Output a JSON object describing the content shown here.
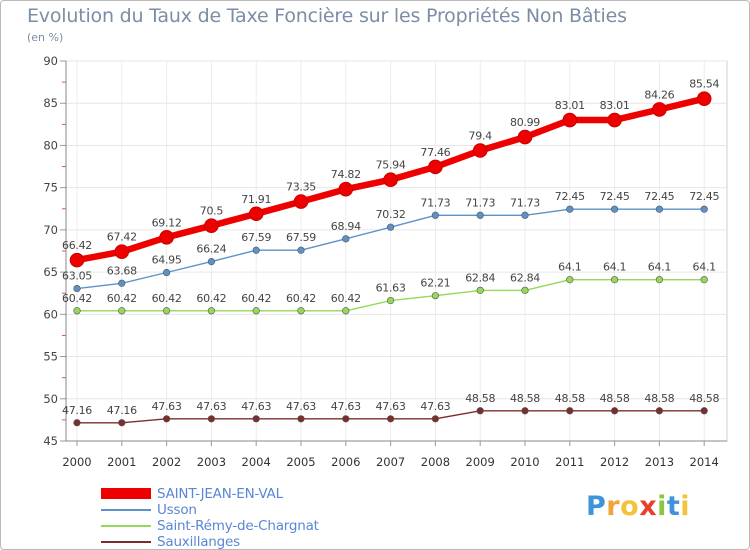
{
  "title": "Evolution du Taux de Taxe Foncière sur les Propriétés Non Bâties",
  "subtitle": "(en %)",
  "logo": {
    "text": "Proxiti",
    "letter_colors": [
      "#3f93d9",
      "#f2a33a",
      "#f5c23b",
      "#e8402e",
      "#8cc641",
      "#3f93d9",
      "#f5c23b"
    ]
  },
  "chart_data": {
    "type": "line",
    "title": "Evolution du Taux de Taxe Foncière sur les Propriétés Non Bâties",
    "ylabel": "(en %)",
    "xlabel": "",
    "x": [
      "2000",
      "2001",
      "2002",
      "2003",
      "2004",
      "2005",
      "2006",
      "2007",
      "2008",
      "2009",
      "2010",
      "2011",
      "2012",
      "2013",
      "2014"
    ],
    "ylim": [
      45,
      90
    ],
    "yticks": [
      "45",
      "50",
      "55",
      "60",
      "65",
      "70",
      "75",
      "80",
      "85",
      "90"
    ],
    "grid": true,
    "legend_position": "bottom-left",
    "series": [
      {
        "name": "SAINT-JEAN-EN-VAL",
        "color": "#ee0000",
        "values": [
          66.42,
          67.42,
          69.12,
          70.5,
          71.91,
          73.35,
          74.82,
          75.94,
          77.46,
          79.4,
          80.99,
          83.01,
          83.01,
          84.26,
          85.54
        ],
        "labels": [
          "66.42",
          "67.42",
          "69.12",
          "70.5",
          "71.91",
          "73.35",
          "74.82",
          "75.94",
          "77.46",
          "79.4",
          "80.99",
          "83.01",
          "83.01",
          "84.26",
          "85.54"
        ]
      },
      {
        "name": "Usson",
        "color": "#5b93c8",
        "values": [
          63.05,
          63.68,
          64.95,
          66.24,
          67.59,
          67.59,
          68.94,
          70.32,
          71.73,
          71.73,
          71.73,
          72.45,
          72.45,
          72.45,
          72.45
        ],
        "labels": [
          "63.05",
          "63.68",
          "64.95",
          "66.24",
          "67.59",
          "67.59",
          "68.94",
          "70.32",
          "71.73",
          "71.73",
          "71.73",
          "72.45",
          "72.45",
          "72.45",
          "72.45"
        ]
      },
      {
        "name": "Saint-Rémy-de-Chargnat",
        "color": "#96d85a",
        "values": [
          60.42,
          60.42,
          60.42,
          60.42,
          60.42,
          60.42,
          60.42,
          61.63,
          62.21,
          62.84,
          62.84,
          64.1,
          64.1,
          64.1,
          64.1
        ],
        "labels": [
          "60.42",
          "60.42",
          "60.42",
          "60.42",
          "60.42",
          "60.42",
          "60.42",
          "61.63",
          "62.21",
          "62.84",
          "62.84",
          "64.1",
          "64.1",
          "64.1",
          "64.1"
        ]
      },
      {
        "name": "Sauxillanges",
        "color": "#7a2e2e",
        "values": [
          47.16,
          47.16,
          47.63,
          47.63,
          47.63,
          47.63,
          47.63,
          47.63,
          47.63,
          48.58,
          48.58,
          48.58,
          48.58,
          48.58,
          48.58
        ],
        "labels": [
          "47.16",
          "47.16",
          "47.63",
          "47.63",
          "47.63",
          "47.63",
          "47.63",
          "47.63",
          "47.63",
          "48.58",
          "48.58",
          "48.58",
          "48.58",
          "48.58",
          "48.58"
        ]
      }
    ]
  }
}
